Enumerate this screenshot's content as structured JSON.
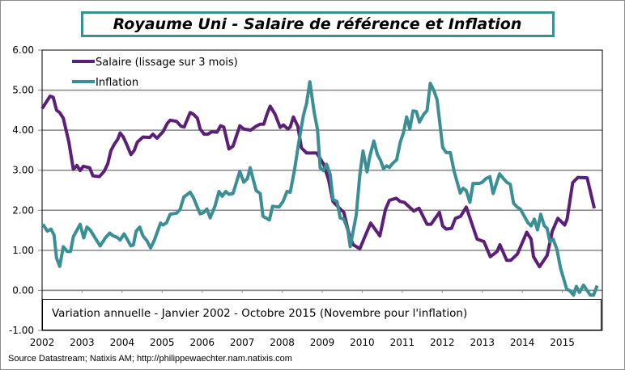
{
  "chart_data": {
    "type": "line",
    "title": "Royaume Uni - Salaire de référence et Inflation",
    "annotation": "Variation annuelle - Janvier 2002 - Octobre 2015 (Novembre pour l'inflation)",
    "source": "Source Datastream; Natixis AM; http://philippewaechter.nam.natixis.com",
    "xlim": [
      2002,
      2016
    ],
    "ylim": [
      -1,
      6
    ],
    "x_ticks": [
      "2002",
      "2003",
      "2004",
      "2005",
      "2006",
      "2007",
      "2008",
      "2009",
      "2010",
      "2011",
      "2012",
      "2013",
      "2014",
      "2015"
    ],
    "y_ticks": [
      "6.00",
      "5.00",
      "4.00",
      "3.00",
      "2.00",
      "1.00",
      "0.00",
      "-1.00"
    ],
    "grid": "horizontal",
    "legend_position": "top-left",
    "series": [
      {
        "name": "Salaire (lissage sur 3 mois)",
        "color": "#5b1f78",
        "x": [
          2002.0,
          2002.2,
          2002.28,
          2002.36,
          2002.44,
          2002.53,
          2002.67,
          2002.78,
          2002.87,
          2002.95,
          2003.03,
          2003.19,
          2003.27,
          2003.43,
          2003.55,
          2003.64,
          2003.72,
          2003.81,
          2003.89,
          2003.95,
          2004.03,
          2004.12,
          2004.22,
          2004.3,
          2004.38,
          2004.52,
          2004.69,
          2004.77,
          2004.87,
          2005.02,
          2005.13,
          2005.2,
          2005.36,
          2005.47,
          2005.55,
          2005.7,
          2005.78,
          2005.88,
          2005.95,
          2006.05,
          2006.14,
          2006.24,
          2006.37,
          2006.46,
          2006.54,
          2006.67,
          2006.77,
          2006.94,
          2007.04,
          2007.21,
          2007.35,
          2007.45,
          2007.54,
          2007.62,
          2007.7,
          2007.82,
          2007.95,
          2008.03,
          2008.14,
          2008.2,
          2008.28,
          2008.39,
          2008.48,
          2008.61,
          2008.86,
          2009.03,
          2009.16,
          2009.27,
          2009.43,
          2009.54,
          2009.67,
          2009.77,
          2009.94,
          2010.04,
          2010.21,
          2010.44,
          2010.58,
          2010.68,
          2010.85,
          2010.95,
          2011.05,
          2011.29,
          2011.42,
          2011.62,
          2011.72,
          2011.93,
          2012.01,
          2012.1,
          2012.23,
          2012.33,
          2012.46,
          2012.6,
          2012.87,
          2013.04,
          2013.2,
          2013.37,
          2013.44,
          2013.61,
          2013.71,
          2013.88,
          2014.11,
          2014.22,
          2014.28,
          2014.43,
          2014.62,
          2014.75,
          2014.89,
          2015.06,
          2015.12,
          2015.26,
          2015.39,
          2015.62,
          2015.8
        ],
        "y": [
          4.54,
          4.85,
          4.82,
          4.5,
          4.44,
          4.3,
          3.7,
          3.02,
          3.12,
          2.99,
          3.1,
          3.06,
          2.86,
          2.84,
          2.97,
          3.16,
          3.49,
          3.66,
          3.77,
          3.93,
          3.83,
          3.63,
          3.39,
          3.49,
          3.7,
          3.83,
          3.82,
          3.9,
          3.8,
          3.96,
          4.17,
          4.25,
          4.22,
          4.1,
          4.08,
          4.44,
          4.4,
          4.3,
          4.03,
          3.9,
          3.9,
          3.96,
          3.95,
          4.11,
          4.08,
          3.53,
          3.6,
          4.11,
          4.03,
          4.0,
          4.1,
          4.15,
          4.15,
          4.4,
          4.6,
          4.4,
          4.07,
          4.13,
          4.03,
          4.08,
          4.33,
          4.1,
          3.56,
          3.43,
          3.43,
          3.16,
          2.76,
          2.22,
          2.05,
          1.95,
          1.41,
          1.14,
          1.04,
          1.28,
          1.68,
          1.36,
          2.02,
          2.25,
          2.3,
          2.22,
          2.2,
          1.98,
          2.05,
          1.65,
          1.65,
          1.95,
          1.61,
          1.53,
          1.55,
          1.8,
          1.85,
          2.08,
          1.28,
          1.22,
          0.84,
          0.97,
          1.14,
          0.75,
          0.75,
          0.91,
          1.45,
          1.28,
          0.84,
          0.59,
          0.87,
          1.48,
          1.8,
          1.63,
          1.78,
          2.69,
          2.82,
          2.81,
          2.05
        ]
      },
      {
        "name": "Inflation",
        "color": "#3a8f94",
        "x": [
          2002.02,
          2002.13,
          2002.22,
          2002.3,
          2002.36,
          2002.44,
          2002.53,
          2002.63,
          2002.71,
          2002.78,
          2002.95,
          2003.04,
          2003.12,
          2003.2,
          2003.45,
          2003.58,
          2003.69,
          2003.78,
          2003.88,
          2003.95,
          2004.05,
          2004.22,
          2004.28,
          2004.35,
          2004.44,
          2004.52,
          2004.62,
          2004.71,
          2004.8,
          2004.96,
          2005.02,
          2005.11,
          2005.2,
          2005.36,
          2005.45,
          2005.54,
          2005.7,
          2005.78,
          2005.95,
          2006.03,
          2006.12,
          2006.2,
          2006.32,
          2006.42,
          2006.5,
          2006.59,
          2006.67,
          2006.77,
          2006.94,
          2007.04,
          2007.13,
          2007.2,
          2007.35,
          2007.45,
          2007.52,
          2007.68,
          2007.76,
          2007.92,
          2008.02,
          2008.12,
          2008.2,
          2008.31,
          2008.42,
          2008.53,
          2008.61,
          2008.69,
          2008.8,
          2008.88,
          2008.95,
          2009.03,
          2009.11,
          2009.2,
          2009.27,
          2009.37,
          2009.45,
          2009.54,
          2009.64,
          2009.7,
          2009.85,
          2009.94,
          2010.02,
          2010.12,
          2010.19,
          2010.29,
          2010.38,
          2010.46,
          2010.53,
          2010.61,
          2010.68,
          2010.75,
          2010.86,
          2010.95,
          2011.03,
          2011.11,
          2011.19,
          2011.27,
          2011.35,
          2011.43,
          2011.54,
          2011.62,
          2011.7,
          2011.79,
          2011.87,
          2012.01,
          2012.1,
          2012.2,
          2012.3,
          2012.45,
          2012.52,
          2012.6,
          2012.69,
          2012.77,
          2012.92,
          2013.0,
          2013.09,
          2013.19,
          2013.27,
          2013.43,
          2013.53,
          2013.61,
          2013.7,
          2013.78,
          2013.87,
          2013.95,
          2014.14,
          2014.22,
          2014.3,
          2014.38,
          2014.46,
          2014.55,
          2014.62,
          2014.69,
          2014.77,
          2014.86,
          2014.96,
          2015.11,
          2015.19,
          2015.28,
          2015.35,
          2015.43,
          2015.53,
          2015.7,
          2015.78,
          2015.87
        ],
        "y": [
          1.65,
          1.48,
          1.53,
          1.38,
          0.81,
          0.6,
          1.09,
          0.97,
          0.97,
          1.34,
          1.65,
          1.31,
          1.58,
          1.51,
          1.11,
          1.31,
          1.43,
          1.36,
          1.32,
          1.26,
          1.41,
          1.11,
          1.13,
          1.48,
          1.58,
          1.36,
          1.24,
          1.06,
          1.24,
          1.68,
          1.63,
          1.69,
          1.9,
          1.93,
          2.02,
          2.33,
          2.45,
          2.32,
          1.91,
          1.94,
          2.03,
          1.81,
          2.1,
          2.47,
          2.35,
          2.47,
          2.4,
          2.42,
          2.97,
          2.7,
          2.79,
          3.06,
          2.49,
          2.42,
          1.85,
          1.76,
          2.1,
          2.08,
          2.22,
          2.47,
          2.45,
          3.02,
          3.73,
          4.37,
          4.67,
          5.21,
          4.44,
          4.03,
          3.06,
          2.99,
          3.15,
          2.89,
          2.27,
          2.22,
          1.81,
          1.78,
          1.51,
          1.09,
          1.88,
          2.89,
          3.48,
          2.96,
          3.35,
          3.73,
          3.39,
          3.24,
          3.04,
          3.11,
          3.07,
          3.16,
          3.26,
          3.7,
          3.93,
          4.33,
          4.03,
          4.48,
          4.47,
          4.2,
          4.4,
          4.49,
          5.17,
          4.99,
          4.76,
          3.57,
          3.44,
          3.44,
          2.96,
          2.43,
          2.55,
          2.49,
          2.2,
          2.67,
          2.67,
          2.7,
          2.79,
          2.84,
          2.42,
          2.91,
          2.79,
          2.7,
          2.65,
          2.18,
          2.08,
          2.03,
          1.69,
          1.61,
          1.78,
          1.51,
          1.9,
          1.61,
          1.55,
          1.21,
          1.28,
          1.04,
          0.54,
          0.03,
          -0.01,
          -0.12,
          0.1,
          -0.05,
          0.13,
          -0.12,
          -0.12,
          0.12
        ]
      }
    ]
  }
}
